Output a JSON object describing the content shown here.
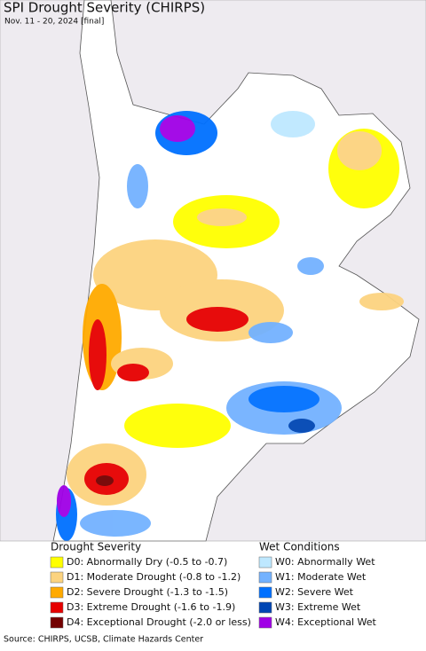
{
  "header": {
    "title": "SPI Drought Severity (CHIRPS)",
    "subtitle": "Nov. 11 - 20, 2024 [final]"
  },
  "legend": {
    "drought": {
      "title": "Drought Severity",
      "items": [
        {
          "label": "D0: Abnormally Dry (-0.5 to -0.7)",
          "color": "#ffff00"
        },
        {
          "label": "D1: Moderate Drought (-0.8 to -1.2)",
          "color": "#fcd37f"
        },
        {
          "label": "D2: Severe Drought (-1.3 to -1.5)",
          "color": "#ffaa00"
        },
        {
          "label": "D3: Extreme Drought (-1.6 to -1.9)",
          "color": "#e60000"
        },
        {
          "label": "D4: Exceptional Drought (-2.0 or less)",
          "color": "#730000"
        }
      ]
    },
    "wet": {
      "title": "Wet Conditions",
      "items": [
        {
          "label": "W0: Abnormally Wet",
          "color": "#bee8ff"
        },
        {
          "label": "W1: Moderate Wet",
          "color": "#73b2ff"
        },
        {
          "label": "W2: Severe Wet",
          "color": "#0070ff"
        },
        {
          "label": "W3: Extreme Wet",
          "color": "#0046b4"
        },
        {
          "label": "W4: Exceptional Wet",
          "color": "#a000e6"
        }
      ]
    }
  },
  "source": "Source: CHIRPS, UCSB, Climate Hazards Center"
}
